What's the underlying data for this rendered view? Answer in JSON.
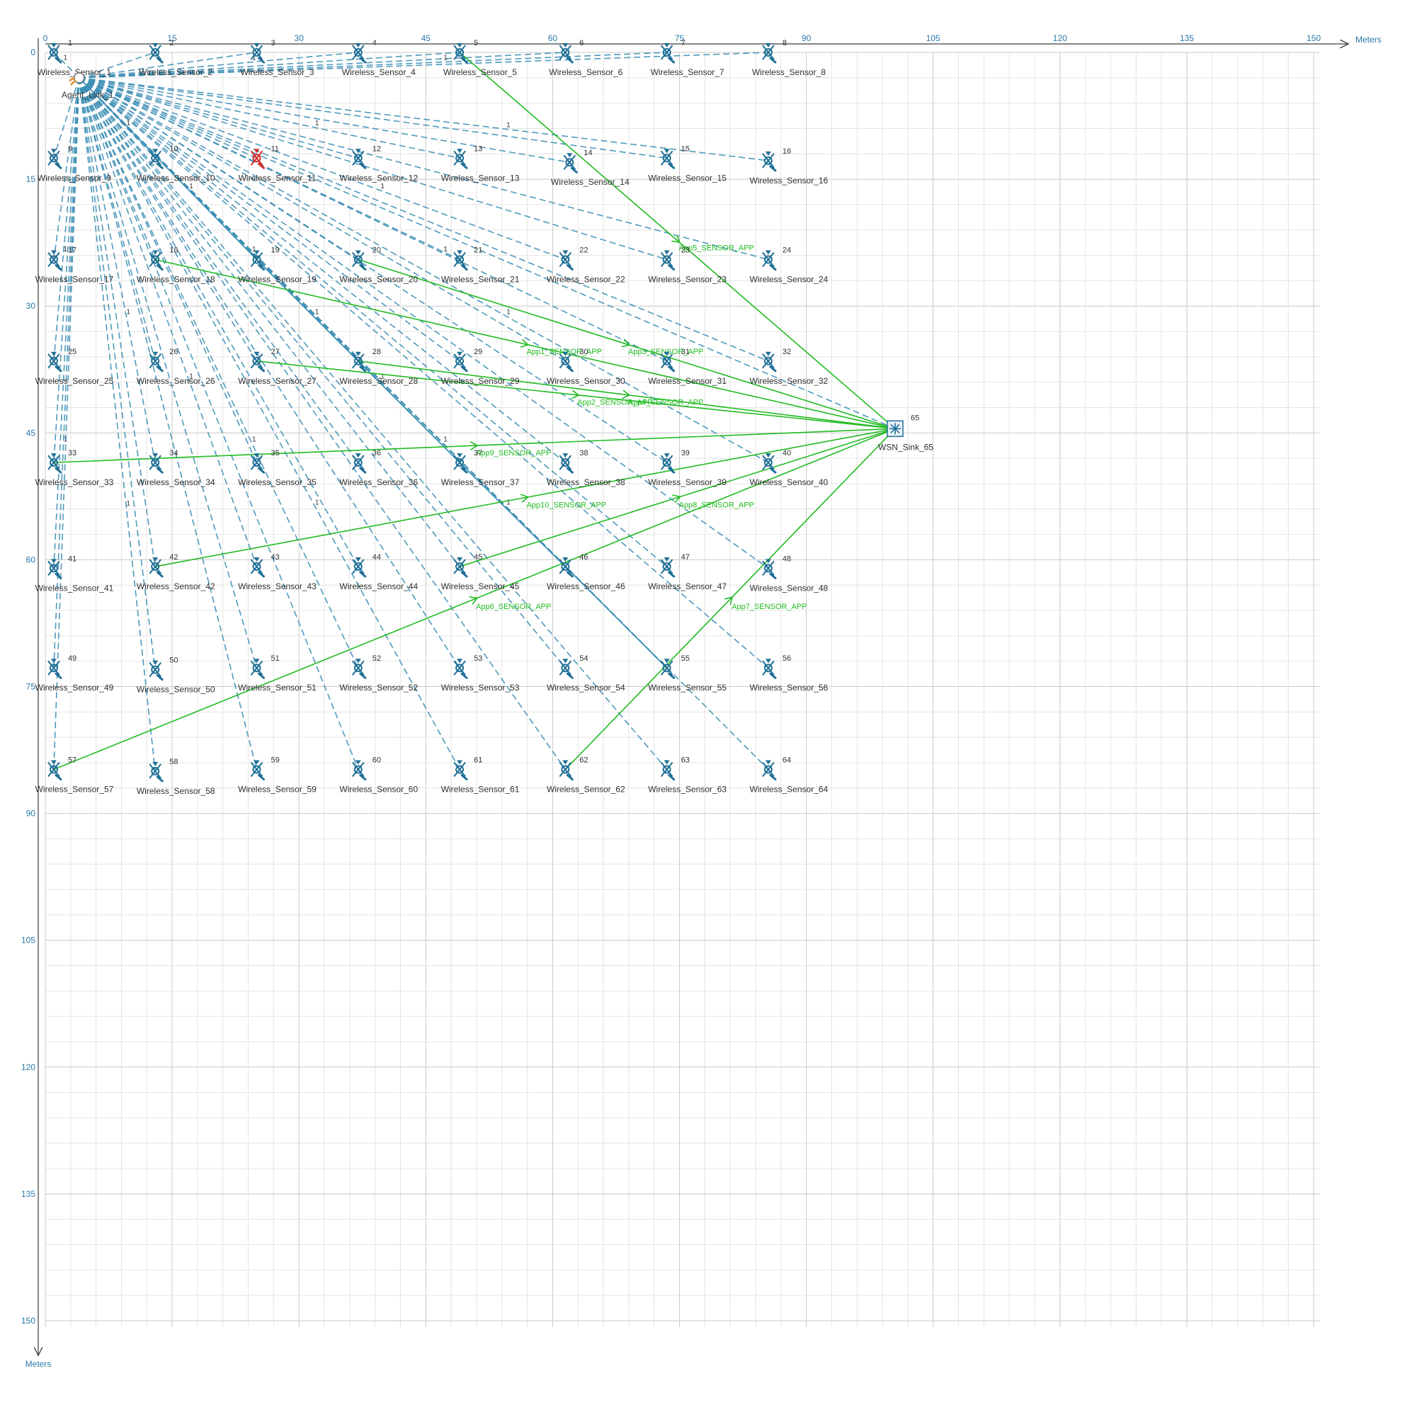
{
  "axis": {
    "x_ticks": [
      "0",
      "15",
      "30",
      "45",
      "60",
      "75",
      "90",
      "105",
      "120",
      "135",
      "150"
    ],
    "y_ticks": [
      "0",
      "15",
      "30",
      "45",
      "60",
      "75",
      "90",
      "105",
      "120",
      "135",
      "150"
    ],
    "x_unit": "Meters",
    "y_unit": "Meters"
  },
  "colors": {
    "grid_minor": "#e4e4e4",
    "grid_major": "#c8c8c8",
    "axis": "#3c3c3c",
    "tick": "#2a78a8",
    "link": "#3d8fb5",
    "path": "#3d8fb5",
    "app": "#22bb22",
    "sensor": "#1f6f96",
    "sensor_alert": "#d42a2a"
  },
  "agent": {
    "id": "",
    "label": "Agent_Link_1",
    "x": 4,
    "y": 3
  },
  "sink": {
    "id": "65",
    "label": "WSN_Sink_65",
    "x": 100.5,
    "y": 44.5
  },
  "sensors": [
    {
      "id": "1",
      "label": "Wireless_Sensor_1",
      "x": 1,
      "y": 0
    },
    {
      "id": "2",
      "label": "Wireless_Sensor_2",
      "x": 13,
      "y": 0
    },
    {
      "id": "3",
      "label": "Wireless_Sensor_3",
      "x": 25,
      "y": 0
    },
    {
      "id": "4",
      "label": "Wireless_Sensor_4",
      "x": 37,
      "y": 0
    },
    {
      "id": "5",
      "label": "Wireless_Sensor_5",
      "x": 49,
      "y": 0
    },
    {
      "id": "6",
      "label": "Wireless_Sensor_6",
      "x": 61.5,
      "y": 0
    },
    {
      "id": "7",
      "label": "Wireless_Sensor_7",
      "x": 73.5,
      "y": 0
    },
    {
      "id": "8",
      "label": "Wireless_Sensor_8",
      "x": 85.5,
      "y": 0
    },
    {
      "id": "9",
      "label": "Wireless_Sensor_9",
      "x": 1,
      "y": 12.5
    },
    {
      "id": "10",
      "label": "Wireless_Sensor_10",
      "x": 13,
      "y": 12.5
    },
    {
      "id": "11",
      "label": "Wireless_Sensor_11",
      "x": 25,
      "y": 12.5,
      "alert": true
    },
    {
      "id": "12",
      "label": "Wireless_Sensor_12",
      "x": 37,
      "y": 12.5
    },
    {
      "id": "13",
      "label": "Wireless_Sensor_13",
      "x": 49,
      "y": 12.5
    },
    {
      "id": "14",
      "label": "Wireless_Sensor_14",
      "x": 62,
      "y": 13
    },
    {
      "id": "15",
      "label": "Wireless_Sensor_15",
      "x": 73.5,
      "y": 12.5
    },
    {
      "id": "16",
      "label": "Wireless_Sensor_16",
      "x": 85.5,
      "y": 12.8
    },
    {
      "id": "17",
      "label": "Wireless_Sensor_17",
      "x": 1,
      "y": 24.5
    },
    {
      "id": "18",
      "label": "Wireless_Sensor_18",
      "x": 13,
      "y": 24.5
    },
    {
      "id": "19",
      "label": "Wireless_Sensor_19",
      "x": 25,
      "y": 24.5
    },
    {
      "id": "20",
      "label": "Wireless_Sensor_20",
      "x": 37,
      "y": 24.5
    },
    {
      "id": "21",
      "label": "Wireless_Sensor_21",
      "x": 49,
      "y": 24.5
    },
    {
      "id": "22",
      "label": "Wireless_Sensor_22",
      "x": 61.5,
      "y": 24.5
    },
    {
      "id": "23",
      "label": "Wireless_Sensor_23",
      "x": 73.5,
      "y": 24.5
    },
    {
      "id": "24",
      "label": "Wireless_Sensor_24",
      "x": 85.5,
      "y": 24.5
    },
    {
      "id": "25",
      "label": "Wireless_Sensor_25",
      "x": 1,
      "y": 36.5
    },
    {
      "id": "26",
      "label": "Wireless_Sensor_26",
      "x": 13,
      "y": 36.5
    },
    {
      "id": "27",
      "label": "Wireless_Sensor_27",
      "x": 25,
      "y": 36.5
    },
    {
      "id": "28",
      "label": "Wireless_Sensor_28",
      "x": 37,
      "y": 36.5
    },
    {
      "id": "29",
      "label": "Wireless_Sensor_29",
      "x": 49,
      "y": 36.5
    },
    {
      "id": "30",
      "label": "Wireless_Sensor_30",
      "x": 61.5,
      "y": 36.5
    },
    {
      "id": "31",
      "label": "Wireless_Sensor_31",
      "x": 73.5,
      "y": 36.5
    },
    {
      "id": "32",
      "label": "Wireless_Sensor_32",
      "x": 85.5,
      "y": 36.5
    },
    {
      "id": "33",
      "label": "Wireless_Sensor_33",
      "x": 1,
      "y": 48.5
    },
    {
      "id": "34",
      "label": "Wireless_Sensor_34",
      "x": 13,
      "y": 48.5
    },
    {
      "id": "35",
      "label": "Wireless_Sensor_35",
      "x": 25,
      "y": 48.5
    },
    {
      "id": "36",
      "label": "Wireless_Sensor_36",
      "x": 37,
      "y": 48.5
    },
    {
      "id": "37",
      "label": "Wireless_Sensor_37",
      "x": 49,
      "y": 48.5
    },
    {
      "id": "38",
      "label": "Wireless_Sensor_38",
      "x": 61.5,
      "y": 48.5
    },
    {
      "id": "39",
      "label": "Wireless_Sensor_39",
      "x": 73.5,
      "y": 48.5
    },
    {
      "id": "40",
      "label": "Wireless_Sensor_40",
      "x": 85.5,
      "y": 48.5
    },
    {
      "id": "41",
      "label": "Wireless_Sensor_41",
      "x": 1,
      "y": 61
    },
    {
      "id": "42",
      "label": "Wireless_Sensor_42",
      "x": 13,
      "y": 60.8
    },
    {
      "id": "43",
      "label": "Wireless_Sensor_43",
      "x": 25,
      "y": 60.8
    },
    {
      "id": "44",
      "label": "Wireless_Sensor_44",
      "x": 37,
      "y": 60.8
    },
    {
      "id": "45",
      "label": "Wireless_Sensor_45",
      "x": 49,
      "y": 60.8
    },
    {
      "id": "46",
      "label": "Wireless_Sensor_46",
      "x": 61.5,
      "y": 60.8
    },
    {
      "id": "47",
      "label": "Wireless_Sensor_47",
      "x": 73.5,
      "y": 60.8
    },
    {
      "id": "48",
      "label": "Wireless_Sensor_48",
      "x": 85.5,
      "y": 61
    },
    {
      "id": "49",
      "label": "Wireless_Sensor_49",
      "x": 1,
      "y": 72.8
    },
    {
      "id": "50",
      "label": "Wireless_Sensor_50",
      "x": 13,
      "y": 73
    },
    {
      "id": "51",
      "label": "Wireless_Sensor_51",
      "x": 25,
      "y": 72.8
    },
    {
      "id": "52",
      "label": "Wireless_Sensor_52",
      "x": 37,
      "y": 72.8
    },
    {
      "id": "53",
      "label": "Wireless_Sensor_53",
      "x": 49,
      "y": 72.8
    },
    {
      "id": "54",
      "label": "Wireless_Sensor_54",
      "x": 61.5,
      "y": 72.8
    },
    {
      "id": "55",
      "label": "Wireless_Sensor_55",
      "x": 73.5,
      "y": 72.8
    },
    {
      "id": "56",
      "label": "Wireless_Sensor_56",
      "x": 85.5,
      "y": 72.8
    },
    {
      "id": "57",
      "label": "Wireless_Sensor_57",
      "x": 1,
      "y": 84.8
    },
    {
      "id": "58",
      "label": "Wireless_Sensor_58",
      "x": 13,
      "y": 85
    },
    {
      "id": "59",
      "label": "Wireless_Sensor_59",
      "x": 25,
      "y": 84.8
    },
    {
      "id": "60",
      "label": "Wireless_Sensor_60",
      "x": 37,
      "y": 84.8
    },
    {
      "id": "61",
      "label": "Wireless_Sensor_61",
      "x": 49,
      "y": 84.8
    },
    {
      "id": "62",
      "label": "Wireless_Sensor_62",
      "x": 61.5,
      "y": 84.8
    },
    {
      "id": "63",
      "label": "Wireless_Sensor_63",
      "x": 73.5,
      "y": 84.8
    },
    {
      "id": "64",
      "label": "Wireless_Sensor_64",
      "x": 85.5,
      "y": 84.8
    }
  ],
  "link_label": "1",
  "routes": [
    [
      "19",
      "28",
      "37",
      "46",
      "55"
    ]
  ],
  "apps": [
    {
      "label": "App1_SENSOR_APP",
      "from": "18"
    },
    {
      "label": "App2_SENSOR_APP",
      "from": "27"
    },
    {
      "label": "App3_SENSOR_APP",
      "from": "20"
    },
    {
      "label": "App4_SENSOR_APP",
      "from": "28"
    },
    {
      "label": "App5_SENSOR_APP",
      "from": "5"
    },
    {
      "label": "App6_SENSOR_APP",
      "from": "57"
    },
    {
      "label": "App7_SENSOR_APP",
      "from": "62"
    },
    {
      "label": "App8_SENSOR_APP",
      "from": "45"
    },
    {
      "label": "App9_SENSOR_APP",
      "from": "33"
    },
    {
      "label": "App10_SENSOR_APP",
      "from": "42"
    }
  ]
}
